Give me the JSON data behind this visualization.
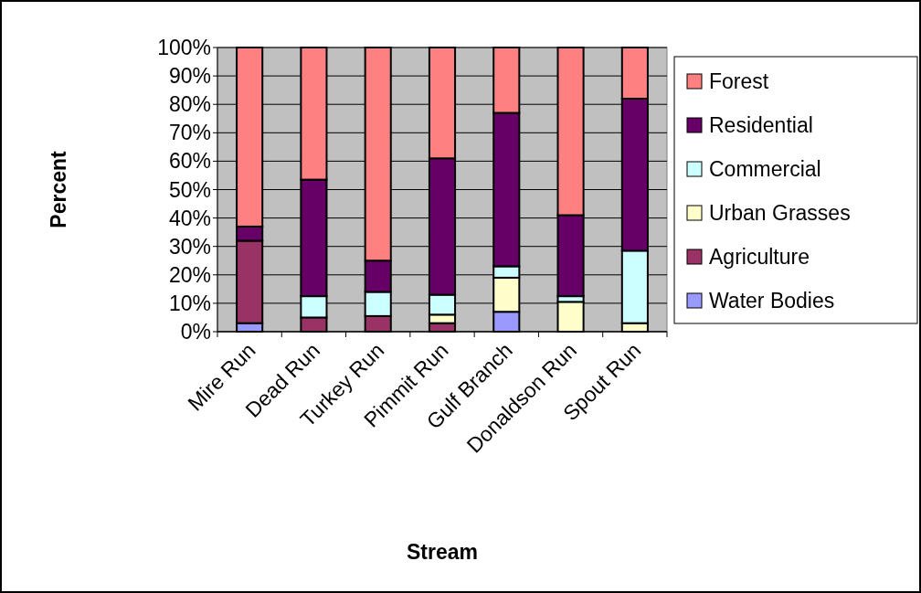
{
  "chart_data": {
    "type": "bar",
    "stacked": true,
    "xlabel": "Stream",
    "ylabel": "Percent",
    "categories": [
      "Mire Run",
      "Dead Run",
      "Turkey Run",
      "Pimmit Run",
      "Gulf Branch",
      "Donaldson Run",
      "Spout Run"
    ],
    "series": [
      {
        "name": "Water Bodies",
        "color": "#9999ff",
        "values": [
          3,
          0,
          0,
          0,
          7,
          0,
          0
        ]
      },
      {
        "name": "Agriculture",
        "color": "#993366",
        "values": [
          29,
          5,
          5.5,
          3,
          0,
          0,
          0
        ]
      },
      {
        "name": "Urban Grasses",
        "color": "#ffffcc",
        "values": [
          0,
          0,
          0,
          3,
          12,
          10.5,
          3
        ]
      },
      {
        "name": "Commercial",
        "color": "#ccffff",
        "values": [
          0,
          7.5,
          8.5,
          7,
          4,
          2,
          25.5
        ]
      },
      {
        "name": "Residential",
        "color": "#660066",
        "values": [
          5,
          41,
          11,
          48,
          54,
          28.5,
          53.5
        ]
      },
      {
        "name": "Forest",
        "color": "#ff8080",
        "values": [
          63,
          46.5,
          75,
          39,
          23,
          59,
          18
        ]
      }
    ],
    "ylim": [
      0,
      100
    ],
    "yticks": [
      {
        "value": 0,
        "label": "0%"
      },
      {
        "value": 10,
        "label": "10%"
      },
      {
        "value": 20,
        "label": "20%"
      },
      {
        "value": 30,
        "label": "30%"
      },
      {
        "value": 40,
        "label": "40%"
      },
      {
        "value": 50,
        "label": "50%"
      },
      {
        "value": 60,
        "label": "60%"
      },
      {
        "value": 70,
        "label": "70%"
      },
      {
        "value": 80,
        "label": "80%"
      },
      {
        "value": 90,
        "label": "90%"
      },
      {
        "value": 100,
        "label": "100%"
      }
    ],
    "grid": "y",
    "legend": "right"
  }
}
